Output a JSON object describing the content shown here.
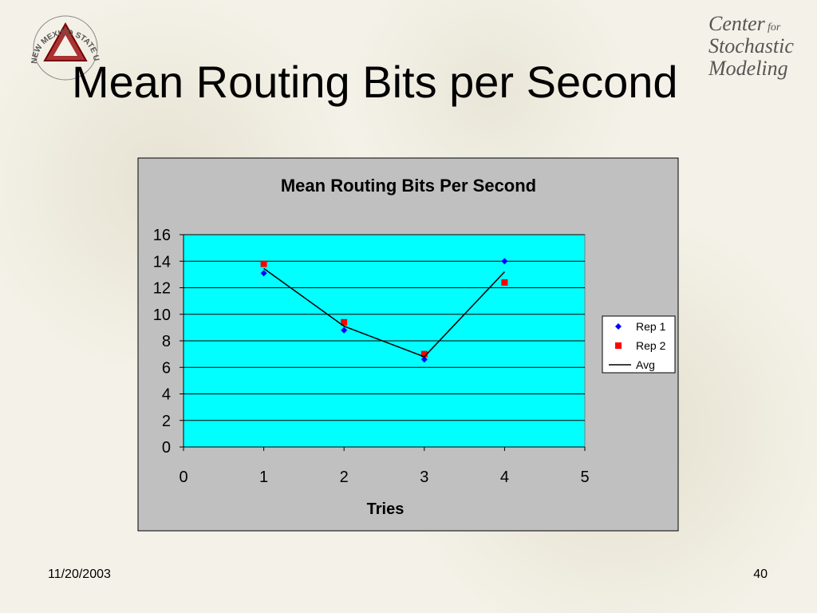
{
  "slide": {
    "title": "Mean Routing Bits per Second",
    "date": "11/20/2003",
    "page_number": "40",
    "logo_left": "NEW MEXICO STATE UNIVERSITY",
    "logo_right": [
      "Center",
      "for",
      "Stochastic",
      "Modeling"
    ]
  },
  "chart_data": {
    "type": "scatter",
    "title": "Mean Routing Bits Per Second",
    "x_label": "Tries",
    "x": [
      1,
      2,
      3,
      4
    ],
    "series": [
      {
        "name": "Rep 1",
        "color": "#0000ff",
        "marker": "diamond",
        "values": [
          13.1,
          8.8,
          6.6,
          14.0
        ]
      },
      {
        "name": "Rep 2",
        "color": "#ff0000",
        "marker": "square",
        "values": [
          13.8,
          9.4,
          7.0,
          12.4
        ]
      },
      {
        "name": "Avg",
        "color": "#000000",
        "marker": "line",
        "values": [
          13.45,
          9.1,
          6.8,
          13.2
        ]
      }
    ],
    "xlim": [
      0,
      5
    ],
    "xticks": [
      0,
      1,
      2,
      3,
      4,
      5
    ],
    "ylim": [
      0,
      16
    ],
    "yticks": [
      0,
      2,
      4,
      6,
      8,
      10,
      12,
      14,
      16
    ],
    "grid": true,
    "legend": "right",
    "plot_color": "#00ffff",
    "frame_color": "#c0c0c0"
  }
}
